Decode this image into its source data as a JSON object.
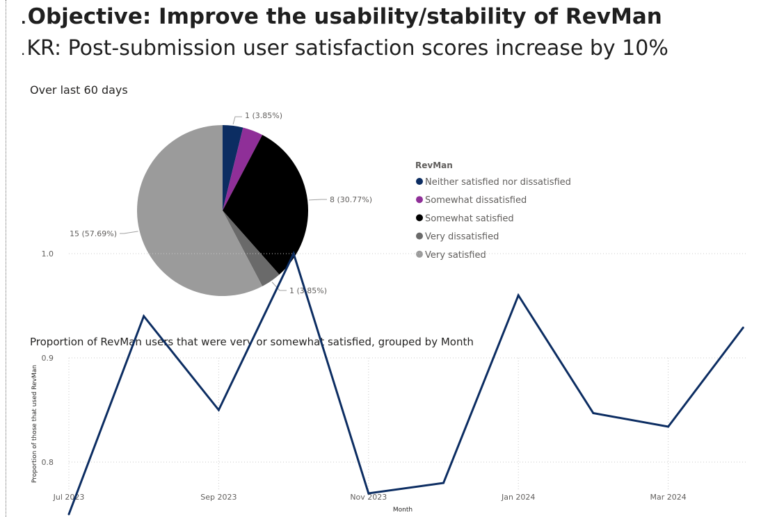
{
  "headings": {
    "objective": "Objective: Improve the usability/stability of RevMan",
    "kr": "KR: Post-submission user satisfaction scores increase by 10%",
    "bullet": "."
  },
  "colors": {
    "Neither satisfied nor dissatisfied": "#0c2d62",
    "Somewhat dissatisfied": "#8f2f98",
    "Somewhat satisfied": "#000000",
    "Very dissatisfied": "#6a6a6a",
    "Very satisfied": "#9b9b9b",
    "line": "#0c2d62"
  },
  "chart_data": [
    {
      "type": "pie",
      "title": "Over last 60 days",
      "legend_title": "RevMan",
      "legend_position": "right",
      "slices": [
        {
          "name": "Neither satisfied nor dissatisfied",
          "value": 1,
          "label": "1 (3.85%)"
        },
        {
          "name": "Somewhat dissatisfied",
          "value": 1,
          "label": ""
        },
        {
          "name": "Somewhat satisfied",
          "value": 8,
          "label": "8 (30.77%)"
        },
        {
          "name": "Very dissatisfied",
          "value": 1,
          "label": "1 (3.85%)"
        },
        {
          "name": "Very satisfied",
          "value": 15,
          "label": "15 (57.69%)"
        }
      ]
    },
    {
      "type": "line",
      "title": "Proportion of RevMan users that were very or somewhat satisfied, grouped by Month",
      "xlabel": "Month",
      "ylabel": "Proportion of those that used RevMan",
      "x": [
        "2023-07",
        "2023-08",
        "2023-09",
        "2023-10",
        "2023-11",
        "2023-12",
        "2024-01",
        "2024-02",
        "2024-03",
        "2024-04"
      ],
      "x_tick_labels": [
        "Jul 2023",
        "Sep 2023",
        "Nov 2023",
        "Jan 2024",
        "Mar 2024"
      ],
      "series": [
        {
          "values": [
            0.75,
            0.94,
            0.85,
            1.0,
            0.77,
            0.78,
            0.96,
            0.847,
            0.834,
            0.929
          ]
        }
      ],
      "y_ticks": [
        0.8,
        0.9,
        1.0
      ],
      "y_tick_labels": [
        "0.8",
        "0.9",
        "1.0"
      ],
      "ylim": [
        0.75,
        1.0
      ],
      "grid": true
    }
  ]
}
